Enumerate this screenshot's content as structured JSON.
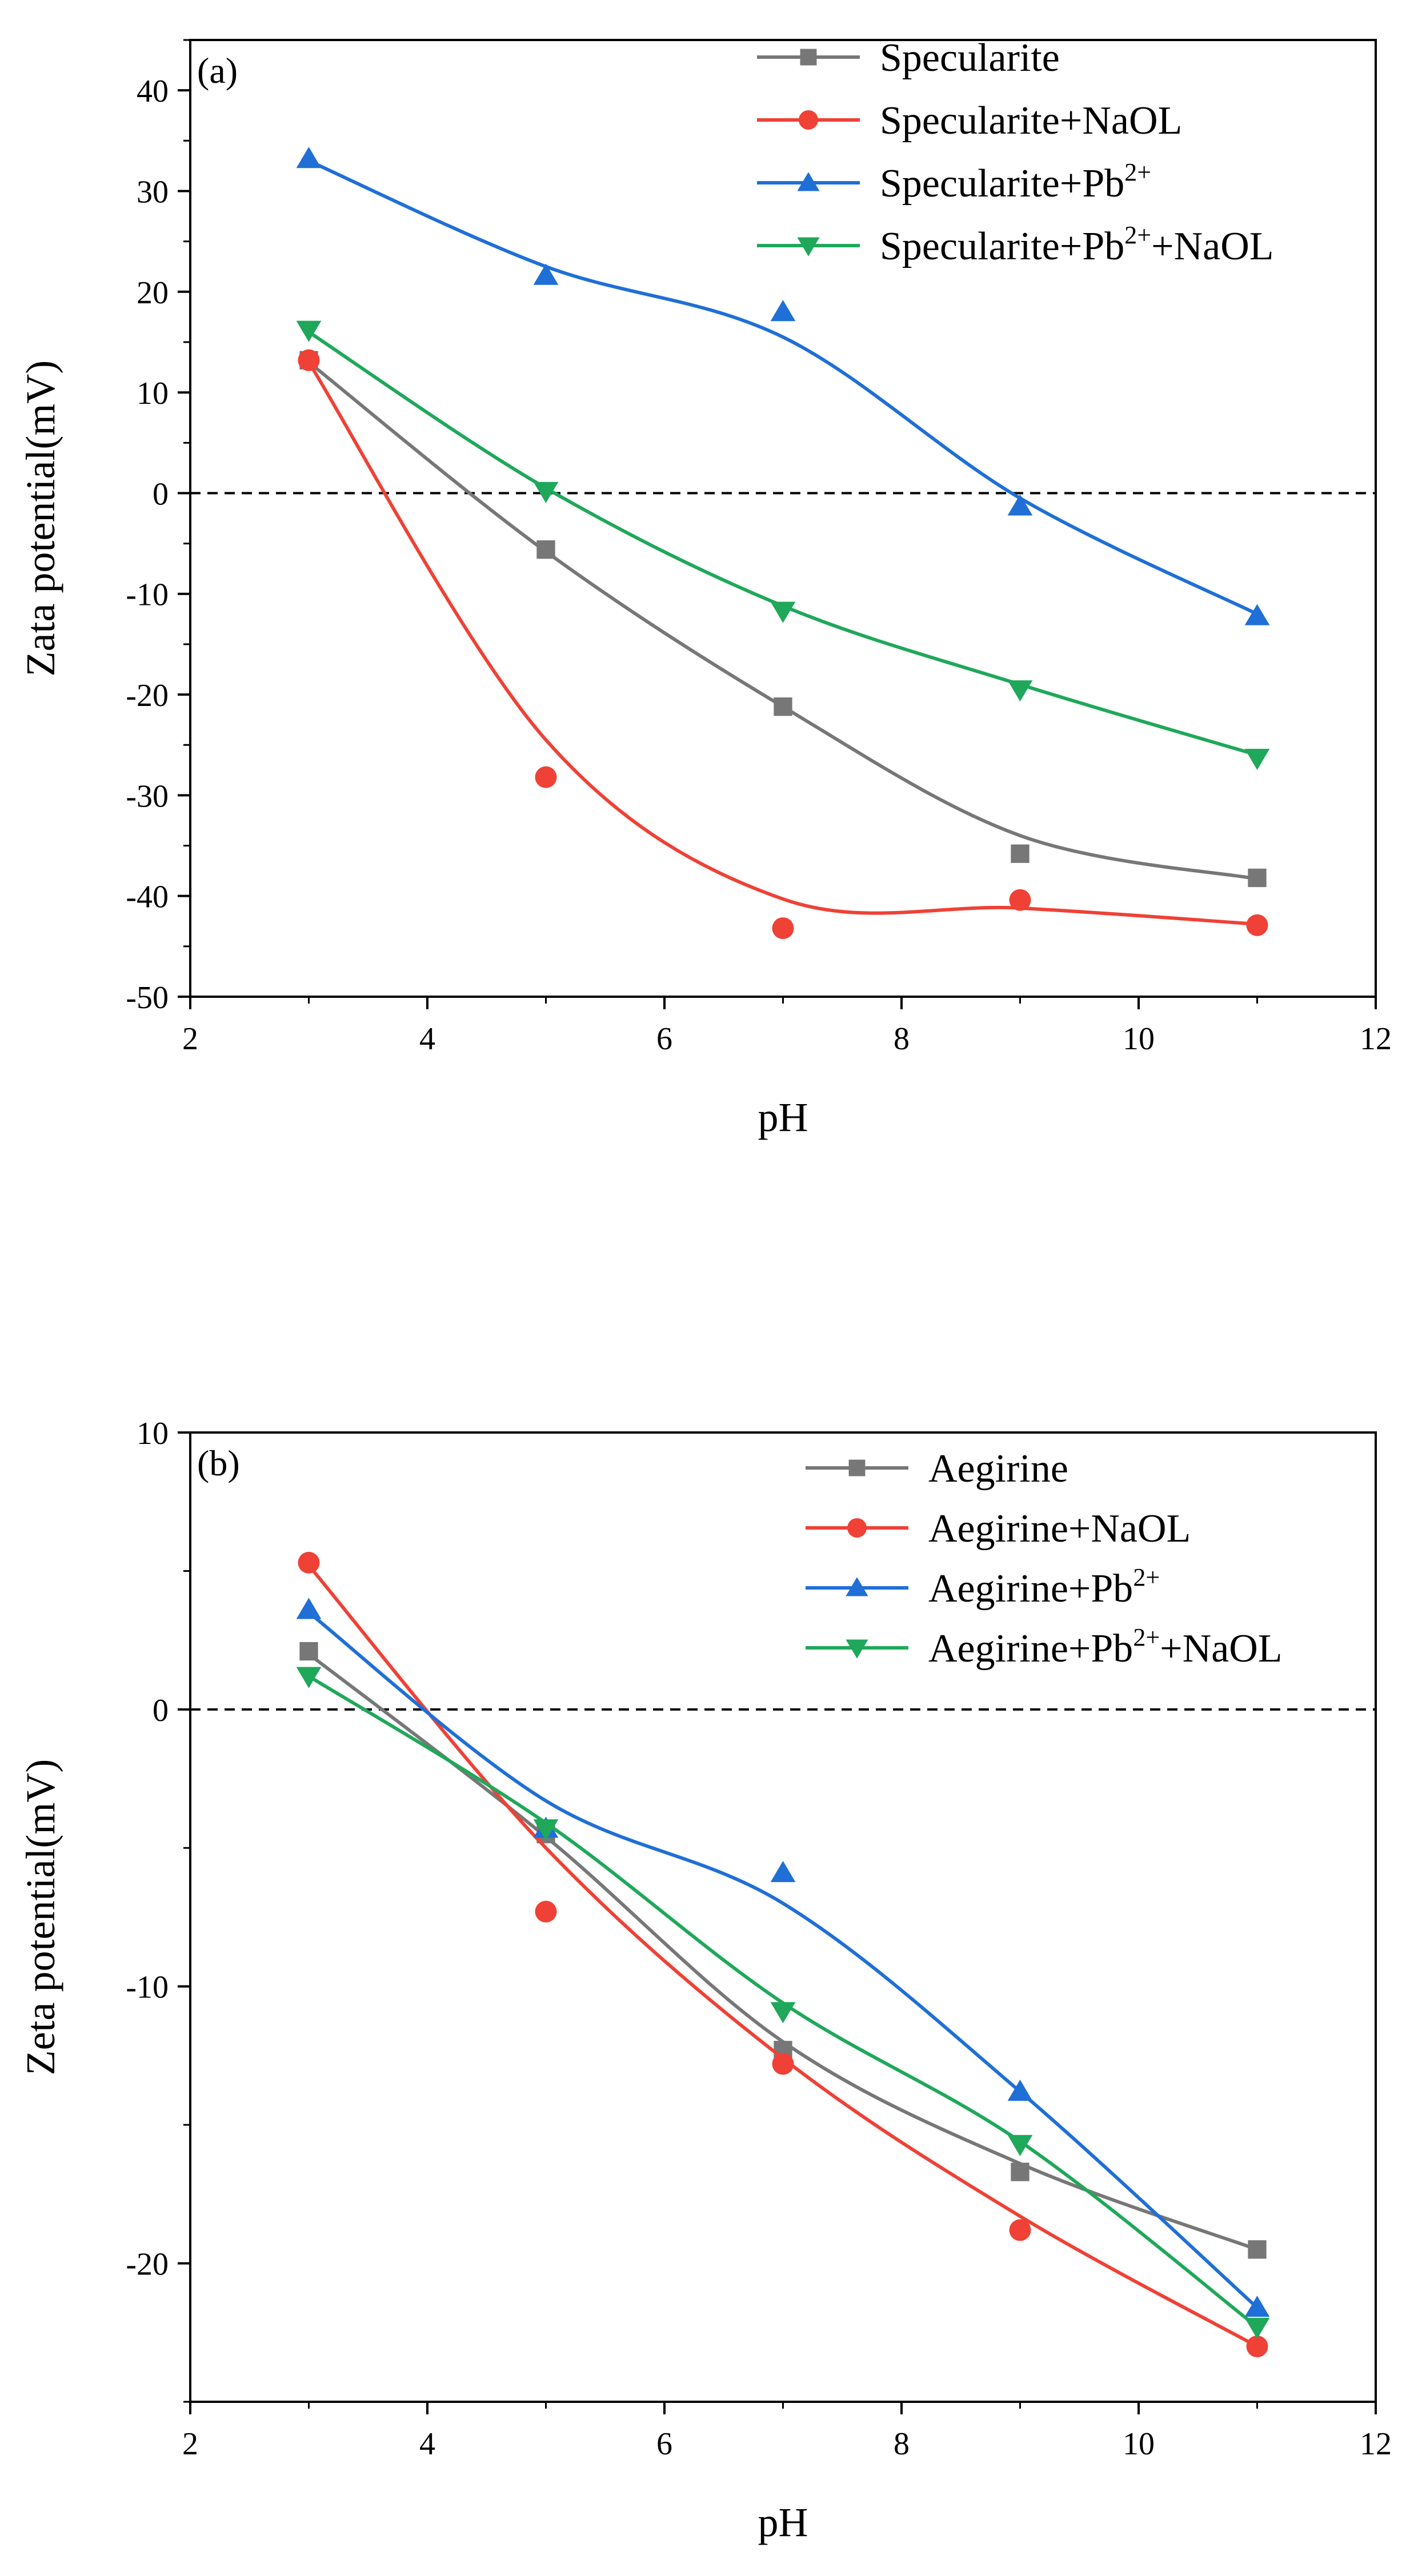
{
  "chart_data": [
    {
      "type": "line",
      "panel_label": "(a)",
      "xlabel": "pH",
      "ylabel": "Zata potential(mV)",
      "xlim": [
        2,
        12
      ],
      "ylim": [
        -50,
        45
      ],
      "x_ticks": [
        2,
        4,
        6,
        8,
        10,
        12
      ],
      "y_ticks": [
        -50,
        -40,
        -30,
        -20,
        -10,
        0,
        10,
        20,
        30,
        40
      ],
      "reference_line": 0,
      "legend_position": "top-right",
      "series": [
        {
          "name": "Specularite",
          "name_base": "Specularite",
          "name_sup": "",
          "name_suffix": "",
          "color": "#777777",
          "marker": "square",
          "x": [
            3,
            5,
            7,
            9,
            11
          ],
          "values": [
            13.2,
            -5.6,
            -21.2,
            -35.8,
            -38.2
          ],
          "fit": [
            13.0,
            -5.8,
            -21.2,
            -34.0,
            -38.3
          ]
        },
        {
          "name": "Specularite+NaOL",
          "name_base": "Specularite+NaOL",
          "name_sup": "",
          "name_suffix": "",
          "color": "#ef4136",
          "marker": "circle",
          "x": [
            3,
            5,
            7,
            9,
            11
          ],
          "values": [
            13.2,
            -28.2,
            -43.2,
            -40.4,
            -42.9
          ],
          "fit": [
            13.0,
            -24.5,
            -40.3,
            -41.2,
            -42.8
          ]
        },
        {
          "name": "Specularite+Pb2+",
          "name_base": "Specularite+Pb",
          "name_sup": "2+",
          "name_suffix": "",
          "color": "#1f6fd6",
          "marker": "triangle-up",
          "x": [
            3,
            5,
            7,
            9,
            11
          ],
          "values": [
            33.2,
            21.6,
            18.0,
            -1.3,
            -12.2
          ],
          "fit": [
            33.0,
            22.5,
            15.5,
            -0.5,
            -12.0
          ]
        },
        {
          "name": "Specularite+Pb2++NaOL",
          "name_base": "Specularite+Pb",
          "name_sup": "2+",
          "name_suffix": "+NaOL",
          "color": "#1fa85a",
          "marker": "triangle-down",
          "x": [
            3,
            5,
            7,
            9,
            11
          ],
          "values": [
            16.2,
            0.2,
            -11.7,
            -19.5,
            -26.3
          ],
          "fit": [
            16.0,
            0.5,
            -11.2,
            -19.0,
            -26.0
          ]
        }
      ]
    },
    {
      "type": "line",
      "panel_label": "(b)",
      "xlabel": "pH",
      "ylabel": "Zeta potential(mV)",
      "xlim": [
        2,
        12
      ],
      "ylim": [
        -25,
        10
      ],
      "x_ticks": [
        2,
        4,
        6,
        8,
        10,
        12
      ],
      "y_ticks": [
        -20,
        -10,
        0,
        10
      ],
      "reference_line": 0,
      "legend_position": "top-right",
      "series": [
        {
          "name": "Aegirine",
          "name_base": "Aegirine",
          "name_sup": "",
          "name_suffix": "",
          "color": "#777777",
          "marker": "square",
          "x": [
            3,
            5,
            7,
            9,
            11
          ],
          "values": [
            2.1,
            -4.5,
            -12.3,
            -16.7,
            -19.5
          ],
          "fit": [
            2.0,
            -4.6,
            -12.0,
            -16.4,
            -19.5
          ]
        },
        {
          "name": "Aegirine+NaOL",
          "name_base": "Aegirine+NaOL",
          "name_sup": "",
          "name_suffix": "",
          "color": "#ef4136",
          "marker": "circle",
          "x": [
            3,
            5,
            7,
            9,
            11
          ],
          "values": [
            5.3,
            -7.3,
            -12.8,
            -18.8,
            -23.0
          ],
          "fit": [
            5.2,
            -5.0,
            -12.6,
            -18.3,
            -23.0
          ]
        },
        {
          "name": "Aegirine+Pb2+",
          "name_base": "Aegirine+Pb",
          "name_sup": "2+",
          "name_suffix": "",
          "color": "#1f6fd6",
          "marker": "triangle-up",
          "x": [
            3,
            5,
            7,
            9,
            11
          ],
          "values": [
            3.6,
            -4.3,
            -5.9,
            -13.8,
            -21.6
          ],
          "fit": [
            3.5,
            -3.3,
            -7.0,
            -13.8,
            -21.6
          ]
        },
        {
          "name": "Aegirine+Pb2++NaOL",
          "name_base": "Aegirine+Pb",
          "name_sup": "2+",
          "name_suffix": "+NaOL",
          "color": "#1fa85a",
          "marker": "triangle-down",
          "x": [
            3,
            5,
            7,
            9,
            11
          ],
          "values": [
            1.2,
            -4.3,
            -10.9,
            -15.7,
            -22.3
          ],
          "fit": [
            1.2,
            -4.1,
            -10.6,
            -15.6,
            -22.3
          ]
        }
      ]
    }
  ]
}
